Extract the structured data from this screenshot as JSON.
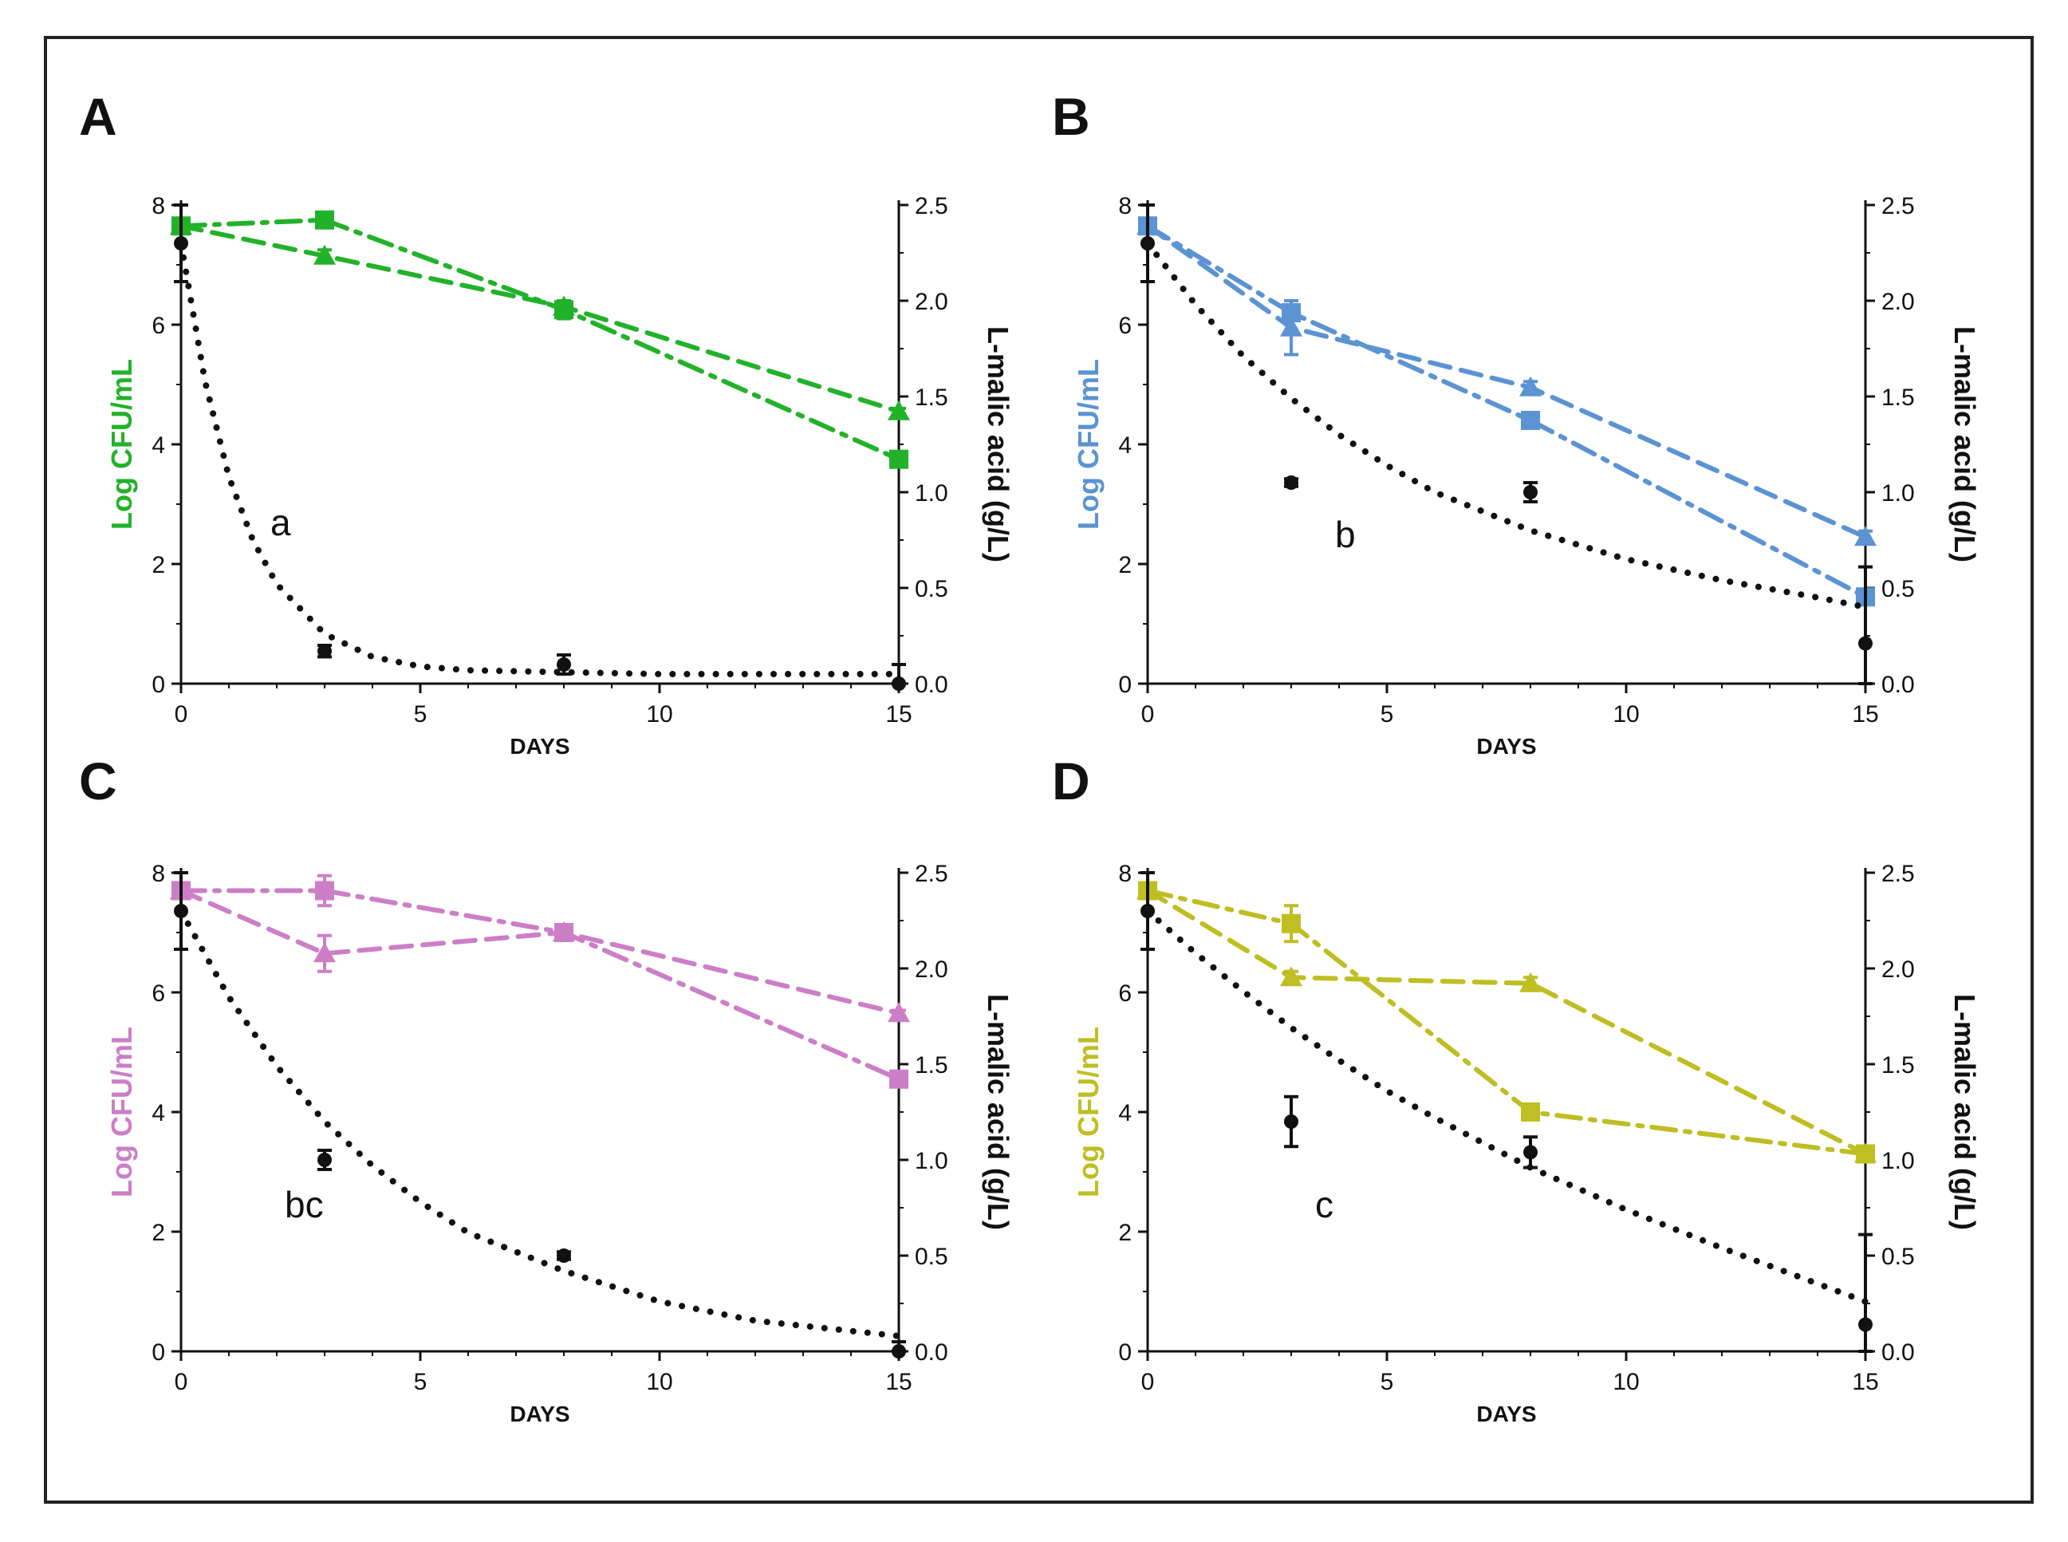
{
  "chart_data": [
    {
      "type": "line",
      "panel": "A",
      "annotation": "a",
      "xlabel": "DAYS",
      "ylabel": "Log CFU/mL",
      "y2label": "L-malic acid (g/L)",
      "xlim": [
        0,
        15
      ],
      "ylim": [
        0,
        8
      ],
      "y2lim": [
        0,
        2.5
      ],
      "xticks": [
        "0",
        "5",
        "10",
        "15"
      ],
      "yticks": [
        "0",
        "2",
        "4",
        "6",
        "8"
      ],
      "y2ticks": [
        "0.0",
        "0.5",
        "1.0",
        "1.5",
        "2.0",
        "2.5"
      ],
      "color": "#22b22a",
      "grid": false,
      "series": [
        {
          "marker": "square",
          "line": "dashdot",
          "axis": "left",
          "x": [
            0,
            3,
            8,
            15
          ],
          "y": [
            7.65,
            7.75,
            6.25,
            3.75
          ],
          "err": [
            0.1,
            0.1,
            0.15,
            0.05
          ]
        },
        {
          "marker": "triangle",
          "line": "dashed",
          "axis": "left",
          "x": [
            0,
            3,
            8,
            15
          ],
          "y": [
            7.65,
            7.15,
            6.3,
            4.55
          ],
          "err": [
            0.1,
            0.1,
            0.1,
            0.05
          ]
        },
        {
          "marker": "circle",
          "line": "none",
          "axis": "right",
          "x": [
            0,
            3,
            8,
            15
          ],
          "y": [
            2.3,
            0.17,
            0.1,
            0.0
          ],
          "err": [
            0.2,
            0.03,
            0.05,
            0.1
          ]
        },
        {
          "marker": "none",
          "line": "dotted",
          "axis": "right",
          "x": [
            0,
            0.5,
            1,
            1.5,
            2,
            3,
            4,
            5,
            6,
            8,
            10,
            12,
            15
          ],
          "y": [
            2.3,
            1.58,
            1.08,
            0.75,
            0.52,
            0.26,
            0.14,
            0.09,
            0.07,
            0.06,
            0.05,
            0.05,
            0.05
          ]
        }
      ]
    },
    {
      "type": "line",
      "panel": "B",
      "annotation": "b",
      "xlabel": "DAYS",
      "ylabel": "Log CFU/mL",
      "y2label": "L-malic acid (g/L)",
      "xlim": [
        0,
        15
      ],
      "ylim": [
        0,
        8
      ],
      "y2lim": [
        0,
        2.5
      ],
      "xticks": [
        "0",
        "5",
        "10",
        "15"
      ],
      "yticks": [
        "0",
        "2",
        "4",
        "6",
        "8"
      ],
      "y2ticks": [
        "0.0",
        "0.5",
        "1.0",
        "1.5",
        "2.0",
        "2.5"
      ],
      "color": "#5b93d3",
      "grid": false,
      "series": [
        {
          "marker": "square",
          "line": "dashdot",
          "axis": "left",
          "x": [
            0,
            3,
            8,
            15
          ],
          "y": [
            7.65,
            6.2,
            4.4,
            1.45
          ],
          "err": [
            0.1,
            0.1,
            0.1,
            0.1
          ]
        },
        {
          "marker": "triangle",
          "line": "dashed",
          "axis": "left",
          "x": [
            0,
            3,
            8,
            15
          ],
          "y": [
            7.65,
            5.95,
            4.95,
            2.45
          ],
          "err": [
            0.1,
            0.45,
            0.1,
            0.1
          ]
        },
        {
          "marker": "circle",
          "line": "none",
          "axis": "right",
          "x": [
            0,
            3,
            8,
            15
          ],
          "y": [
            2.3,
            1.05,
            1.0,
            0.21
          ],
          "err": [
            0.2,
            0.02,
            0.05,
            0.4
          ]
        },
        {
          "marker": "none",
          "line": "dotted",
          "axis": "right",
          "x": [
            0,
            1,
            2,
            3,
            4,
            5,
            6,
            8,
            10,
            12,
            14,
            15
          ],
          "y": [
            2.3,
            1.98,
            1.71,
            1.49,
            1.3,
            1.14,
            1.0,
            0.8,
            0.65,
            0.54,
            0.45,
            0.4
          ]
        }
      ]
    },
    {
      "type": "line",
      "panel": "C",
      "annotation": "bc",
      "xlabel": "DAYS",
      "ylabel": "Log CFU/mL",
      "y2label": "L-malic acid (g/L)",
      "xlim": [
        0,
        15
      ],
      "ylim": [
        0,
        8
      ],
      "y2lim": [
        0,
        2.5
      ],
      "xticks": [
        "0",
        "5",
        "10",
        "15"
      ],
      "yticks": [
        "0",
        "2",
        "4",
        "6",
        "8"
      ],
      "y2ticks": [
        "0.0",
        "0.5",
        "1.0",
        "1.5",
        "2.0",
        "2.5"
      ],
      "color": "#cc7ec7",
      "grid": false,
      "series": [
        {
          "marker": "square",
          "line": "dashdot",
          "axis": "left",
          "x": [
            0,
            3,
            8,
            15
          ],
          "y": [
            7.7,
            7.7,
            7.0,
            4.55
          ],
          "err": [
            0.1,
            0.25,
            0.1,
            0.05
          ]
        },
        {
          "marker": "triangle",
          "line": "dashed",
          "axis": "left",
          "x": [
            0,
            3,
            8,
            15
          ],
          "y": [
            7.7,
            6.65,
            7.0,
            5.65
          ],
          "err": [
            0.1,
            0.3,
            0.1,
            0.05
          ]
        },
        {
          "marker": "circle",
          "line": "none",
          "axis": "right",
          "x": [
            0,
            3,
            8,
            15
          ],
          "y": [
            2.3,
            1.0,
            0.5,
            0.0
          ],
          "err": [
            0.2,
            0.05,
            0.02,
            0.05
          ]
        },
        {
          "marker": "none",
          "line": "dotted",
          "axis": "right",
          "x": [
            0,
            1,
            2,
            3,
            4,
            5,
            6,
            8,
            10,
            12,
            15
          ],
          "y": [
            2.3,
            1.85,
            1.49,
            1.2,
            0.97,
            0.78,
            0.62,
            0.42,
            0.26,
            0.16,
            0.08
          ]
        }
      ]
    },
    {
      "type": "line",
      "panel": "D",
      "annotation": "c",
      "xlabel": "DAYS",
      "ylabel": "Log CFU/mL",
      "y2label": "L-malic acid (g/L)",
      "xlim": [
        0,
        15
      ],
      "ylim": [
        0,
        8
      ],
      "y2lim": [
        0,
        2.5
      ],
      "xticks": [
        "0",
        "5",
        "10",
        "15"
      ],
      "yticks": [
        "0",
        "2",
        "4",
        "6",
        "8"
      ],
      "y2ticks": [
        "0.0",
        "0.5",
        "1.0",
        "1.5",
        "2.0",
        "2.5"
      ],
      "color": "#bfbe22",
      "grid": false,
      "series": [
        {
          "marker": "square",
          "line": "dashdot",
          "axis": "left",
          "x": [
            0,
            3,
            8,
            15
          ],
          "y": [
            7.7,
            7.15,
            4.0,
            3.3
          ],
          "err": [
            0.1,
            0.3,
            0.1,
            0.1
          ]
        },
        {
          "marker": "triangle",
          "line": "dashed",
          "axis": "left",
          "x": [
            0,
            3,
            8,
            15
          ],
          "y": [
            7.7,
            6.25,
            6.15,
            3.3
          ],
          "err": [
            0.1,
            0.1,
            0.1,
            0.1
          ]
        },
        {
          "marker": "circle",
          "line": "none",
          "axis": "right",
          "x": [
            0,
            3,
            8,
            15
          ],
          "y": [
            2.3,
            1.2,
            1.04,
            0.14
          ],
          "err": [
            0.2,
            0.13,
            0.08,
            0.47
          ]
        },
        {
          "marker": "none",
          "line": "dotted",
          "axis": "right",
          "x": [
            0,
            1,
            2,
            3,
            4,
            5,
            6,
            8,
            10,
            12,
            15
          ],
          "y": [
            2.3,
            2.08,
            1.88,
            1.69,
            1.52,
            1.36,
            1.22,
            0.96,
            0.74,
            0.54,
            0.26
          ]
        }
      ]
    }
  ]
}
